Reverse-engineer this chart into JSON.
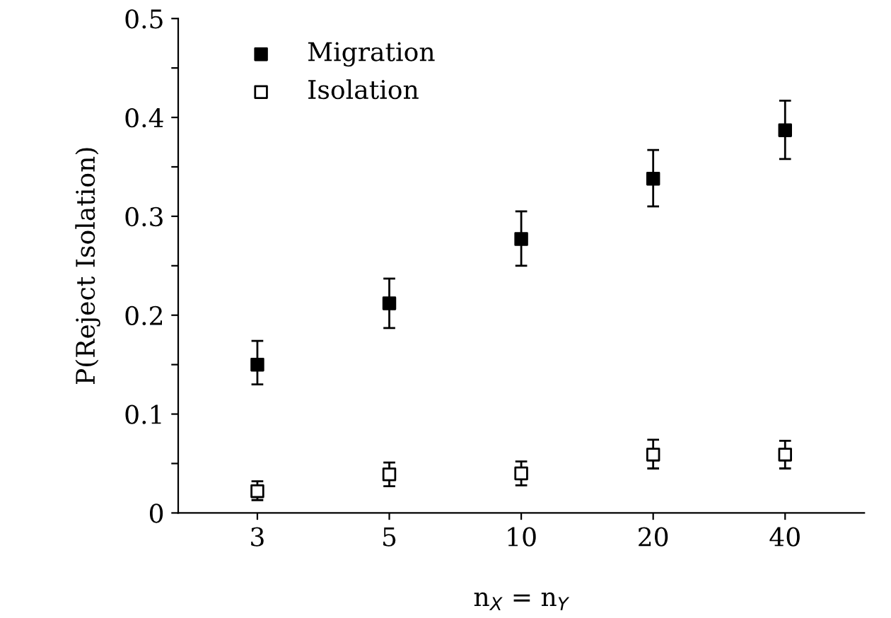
{
  "chart_data": {
    "type": "scatter",
    "xlabel": "n$_{X}$ = n$_{Y}$",
    "ylabel": "P(Reject Isolation)",
    "categories": [
      "3",
      "5",
      "10",
      "20",
      "40"
    ],
    "series": [
      {
        "name": "Migration",
        "color": "#000000",
        "marker": "square",
        "values": [
          0.15,
          0.212,
          0.277,
          0.338,
          0.387
        ],
        "errors": [
          [
            0.13,
            0.174
          ],
          [
            0.187,
            0.237
          ],
          [
            0.25,
            0.305
          ],
          [
            0.31,
            0.367
          ],
          [
            0.358,
            0.417
          ]
        ]
      },
      {
        "name": "Isolation",
        "color": "#000000",
        "marker": "square",
        "values": [
          0.022,
          0.039,
          0.04,
          0.059,
          0.059
        ],
        "errors": [
          [
            0.013,
            0.032
          ],
          [
            0.027,
            0.051
          ],
          [
            0.028,
            0.052
          ],
          [
            0.045,
            0.074
          ],
          [
            0.045,
            0.073
          ]
        ]
      }
    ],
    "ylim": [
      0,
      0.5
    ],
    "yticks": [
      0,
      {
        "value": 0.05,
        "label": null
      },
      0.1,
      {
        "value": 0.15,
        "label": null
      },
      0.2,
      {
        "value": 0.25,
        "label": null
      },
      0.3,
      {
        "value": 0.35,
        "label": null
      },
      0.4,
      {
        "value": 0.45,
        "label": null
      },
      0.5
    ],
    "grid": false,
    "legend": "top left"
  }
}
